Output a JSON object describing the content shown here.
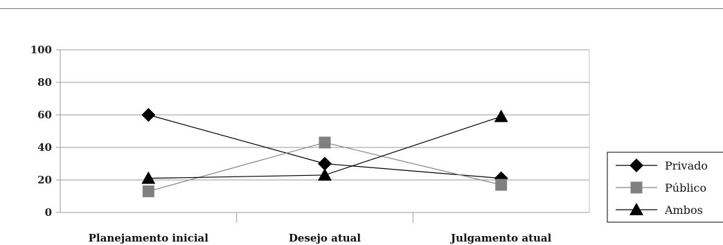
{
  "chart_data": {
    "type": "line",
    "categories": [
      "Planejamento inicial",
      "Desejo atual",
      "Julgamento atual"
    ],
    "ylim": [
      0,
      100
    ],
    "yticks": [
      0,
      20,
      40,
      60,
      80,
      100
    ],
    "grid": true,
    "legend_position": "right",
    "series": [
      {
        "name": "Privado",
        "values": [
          60,
          30,
          21
        ],
        "color": "#000000",
        "marker": "diamond"
      },
      {
        "name": "Público",
        "values": [
          13,
          43,
          17
        ],
        "color": "#808080",
        "marker": "square"
      },
      {
        "name": "Ambos",
        "values": [
          21,
          23,
          59
        ],
        "color": "#000000",
        "marker": "triangle"
      }
    ]
  }
}
